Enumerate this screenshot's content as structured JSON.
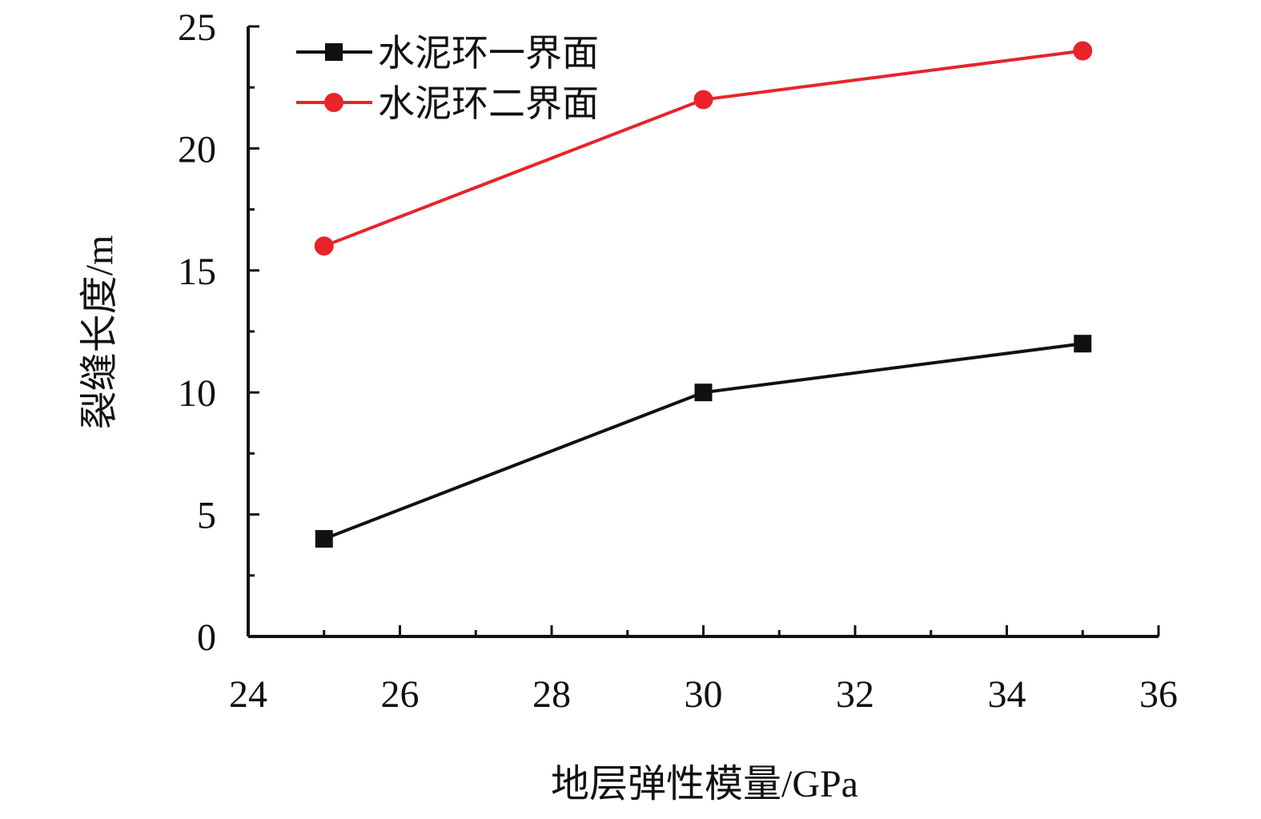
{
  "chart_data": {
    "type": "line",
    "title": "",
    "xlabel": "地层弹性模量/GPa",
    "ylabel": "裂缝长度/m",
    "x": [
      25,
      30,
      35
    ],
    "xlim": [
      24,
      36
    ],
    "ylim": [
      0,
      25
    ],
    "xticks": [
      "24",
      "26",
      "28",
      "30",
      "32",
      "34",
      "36"
    ],
    "yticks": [
      "0",
      "5",
      "10",
      "15",
      "20",
      "25"
    ],
    "grid": false,
    "legend": "top-left",
    "series": [
      {
        "name": "水泥环一界面",
        "values": [
          4,
          10,
          12
        ],
        "color": "#111111",
        "marker": "square"
      },
      {
        "name": "水泥环二界面",
        "values": [
          16,
          22,
          24
        ],
        "color": "#e8242a",
        "marker": "circle"
      }
    ]
  }
}
